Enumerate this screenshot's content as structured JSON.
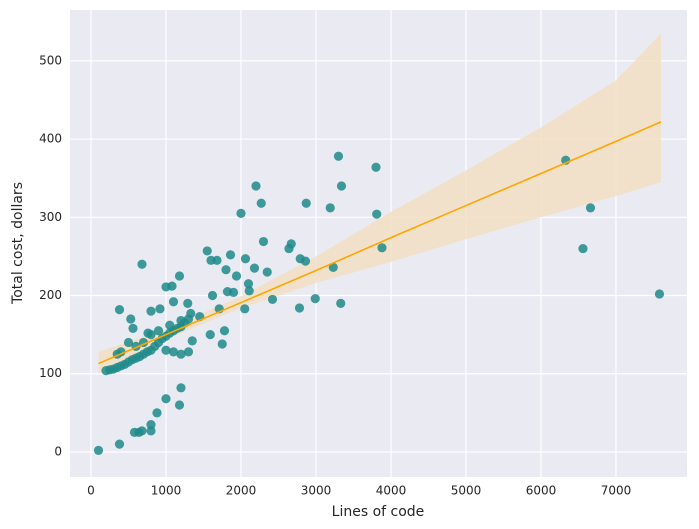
{
  "chart_data": {
    "type": "scatter",
    "xlabel": "Lines of code",
    "ylabel": "Total cost, dollars",
    "x": [
      100,
      380,
      580,
      640,
      680,
      800,
      800,
      880,
      1000,
      1180,
      1200,
      200,
      250,
      300,
      350,
      400,
      450,
      500,
      550,
      600,
      650,
      700,
      750,
      800,
      850,
      900,
      950,
      1000,
      1050,
      1100,
      1150,
      1200,
      1250,
      1300,
      350,
      400,
      500,
      600,
      700,
      800,
      900,
      1000,
      1100,
      1200,
      1300,
      1350,
      380,
      530,
      560,
      680,
      760,
      800,
      920,
      1000,
      1050,
      1080,
      1100,
      1180,
      1200,
      1290,
      1330,
      1450,
      1550,
      1590,
      1600,
      1620,
      1680,
      1710,
      1750,
      1780,
      1800,
      1820,
      1860,
      1900,
      1940,
      2000,
      2050,
      2060,
      2100,
      2110,
      2180,
      2200,
      2270,
      2300,
      2350,
      2420,
      2640,
      2670,
      2780,
      2790,
      2860,
      2870,
      2990,
      3190,
      3230,
      3300,
      3330,
      3340,
      3800,
      3810,
      3880,
      6330,
      6560,
      6660,
      7580
    ],
    "values": [
      2,
      10,
      25,
      25,
      27,
      27,
      35,
      50,
      68,
      60,
      82,
      104,
      105,
      106,
      108,
      110,
      112,
      115,
      118,
      120,
      122,
      125,
      128,
      130,
      135,
      140,
      145,
      148,
      152,
      155,
      158,
      160,
      165,
      170,
      125,
      128,
      140,
      135,
      140,
      150,
      155,
      130,
      128,
      125,
      128,
      142,
      182,
      170,
      158,
      240,
      152,
      180,
      183,
      211,
      162,
      212,
      192,
      225,
      168,
      190,
      177,
      173,
      257,
      150,
      245,
      200,
      245,
      183,
      138,
      155,
      233,
      205,
      252,
      204,
      225,
      305,
      183,
      247,
      215,
      206,
      235,
      340,
      318,
      269,
      230,
      195,
      260,
      266,
      184,
      247,
      244,
      318,
      196,
      312,
      236,
      378,
      190,
      340,
      364,
      304,
      261,
      373,
      260,
      312,
      202
    ],
    "color": "#1f8a8a",
    "fit": {
      "x": [
        100,
        1000,
        2000,
        3000,
        4000,
        5000,
        6000,
        7000,
        7600
      ],
      "values": [
        113,
        150,
        191,
        232,
        274,
        315,
        356,
        397,
        422
      ],
      "ci_lower": [
        100,
        144,
        184,
        216,
        243,
        272,
        300,
        327,
        345
      ],
      "ci_upper": [
        128,
        157,
        199,
        250,
        307,
        360,
        415,
        475,
        535
      ],
      "color": "#ffa500",
      "band_color": "#f3dfc3"
    },
    "xlim": [
      -280,
      7947
    ],
    "ylim": [
      -32,
      565
    ],
    "xticks": [
      0,
      1000,
      2000,
      3000,
      4000,
      5000,
      6000,
      7000
    ],
    "yticks": [
      0,
      100,
      200,
      300,
      400,
      500
    ],
    "grid": true
  }
}
